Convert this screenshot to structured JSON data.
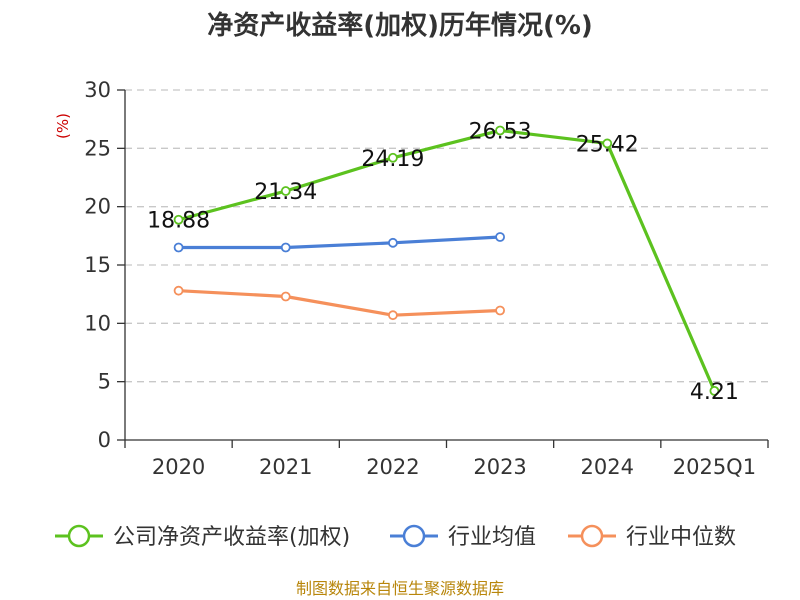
{
  "chart_data": {
    "type": "line",
    "title": "净资产收益率(加权)历年情况(%)",
    "ylabel": "(%)",
    "xlabel": "",
    "categories": [
      "2020",
      "2021",
      "2022",
      "2023",
      "2024",
      "2025Q1"
    ],
    "ylim": [
      0,
      30
    ],
    "yticks": [
      0,
      5,
      10,
      15,
      20,
      25,
      30
    ],
    "grid": true,
    "legend_position": "bottom",
    "series": [
      {
        "name": "公司净资产收益率(加权)",
        "color": "#5cc21f",
        "values": [
          18.88,
          21.34,
          24.19,
          26.53,
          25.42,
          4.21
        ],
        "labels": [
          "18.88",
          "21.34",
          "24.19",
          "26.53",
          "25.42",
          "4.21"
        ],
        "show_labels": true
      },
      {
        "name": "行业均值",
        "color": "#4a7fd6",
        "values": [
          16.5,
          16.5,
          16.9,
          17.4,
          null,
          null
        ],
        "show_labels": false
      },
      {
        "name": "行业中位数",
        "color": "#f5905b",
        "values": [
          12.8,
          12.3,
          10.7,
          11.1,
          null,
          null
        ],
        "show_labels": false
      }
    ],
    "source": "制图数据来自恒生聚源数据库"
  }
}
